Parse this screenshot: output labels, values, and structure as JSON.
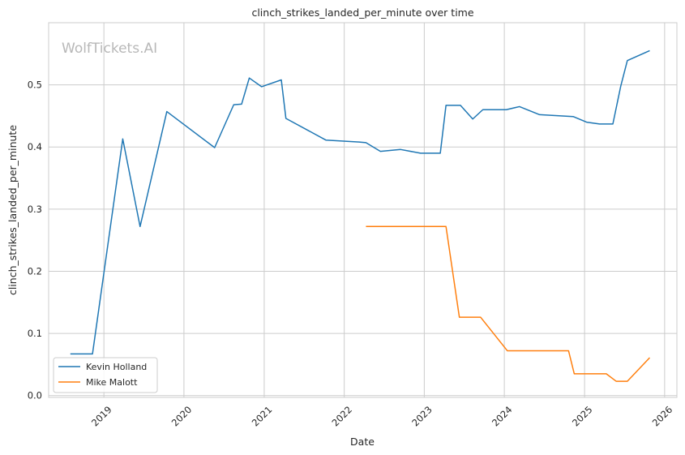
{
  "watermark": "WolfTickets.AI",
  "chart_data": {
    "type": "line",
    "title": "clinch_strikes_landed_per_minute over time",
    "xlabel": "Date",
    "ylabel": "clinch_strikes_landed_per_minute",
    "xlim": [
      "2018-04-24",
      "2026-02-26"
    ],
    "ylim": [
      -0.003,
      0.6
    ],
    "x_ticks": [
      "2019",
      "2020",
      "2021",
      "2022",
      "2023",
      "2024",
      "2025",
      "2026"
    ],
    "y_ticks": [
      "0.0",
      "0.1",
      "0.2",
      "0.3",
      "0.4",
      "0.5"
    ],
    "grid": true,
    "legend": "lower-left",
    "series": [
      {
        "name": "Kevin Holland",
        "color": "#1f77b4",
        "points": [
          [
            "2018-08-01",
            0.067
          ],
          [
            "2018-11-10",
            0.067
          ],
          [
            "2019-03-28",
            0.413
          ],
          [
            "2019-06-15",
            0.272
          ],
          [
            "2019-10-15",
            0.457
          ],
          [
            "2020-05-20",
            0.399
          ],
          [
            "2020-08-15",
            0.468
          ],
          [
            "2020-09-20",
            0.469
          ],
          [
            "2020-10-25",
            0.511
          ],
          [
            "2020-12-20",
            0.497
          ],
          [
            "2021-03-20",
            0.508
          ],
          [
            "2021-04-10",
            0.446
          ],
          [
            "2021-10-10",
            0.411
          ],
          [
            "2022-03-10",
            0.408
          ],
          [
            "2022-04-10",
            0.407
          ],
          [
            "2022-06-15",
            0.393
          ],
          [
            "2022-09-15",
            0.396
          ],
          [
            "2022-12-15",
            0.39
          ],
          [
            "2023-03-15",
            0.39
          ],
          [
            "2023-04-10",
            0.467
          ],
          [
            "2023-06-15",
            0.467
          ],
          [
            "2023-08-10",
            0.445
          ],
          [
            "2023-09-25",
            0.46
          ],
          [
            "2024-01-10",
            0.46
          ],
          [
            "2024-03-10",
            0.465
          ],
          [
            "2024-06-10",
            0.452
          ],
          [
            "2024-11-10",
            0.449
          ],
          [
            "2025-01-10",
            0.44
          ],
          [
            "2025-03-10",
            0.437
          ],
          [
            "2025-05-10",
            0.437
          ],
          [
            "2025-06-15",
            0.498
          ],
          [
            "2025-07-15",
            0.539
          ],
          [
            "2025-10-25",
            0.555
          ]
        ]
      },
      {
        "name": "Mike Malott",
        "color": "#ff7f0e",
        "points": [
          [
            "2022-04-10",
            0.272
          ],
          [
            "2023-04-10",
            0.272
          ],
          [
            "2023-06-10",
            0.126
          ],
          [
            "2023-09-15",
            0.126
          ],
          [
            "2024-01-15",
            0.072
          ],
          [
            "2024-10-20",
            0.072
          ],
          [
            "2024-11-15",
            0.035
          ],
          [
            "2025-04-10",
            0.035
          ],
          [
            "2025-05-25",
            0.023
          ],
          [
            "2025-07-15",
            0.023
          ],
          [
            "2025-10-25",
            0.061
          ]
        ]
      }
    ]
  }
}
